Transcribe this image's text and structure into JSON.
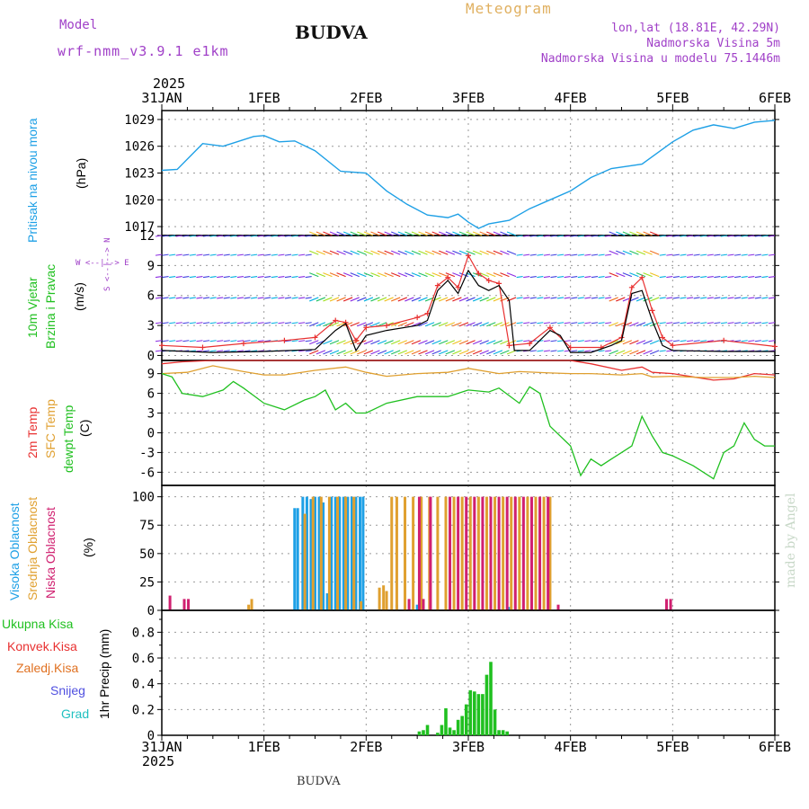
{
  "header": {
    "model_label": "Model",
    "model_name": "wrf-nmm_v3.9.1 e1km",
    "title": "BUDVA",
    "meteogram_label": "Meteogram",
    "lonlat": "lon,lat (18.81E, 42.29N)",
    "elevation": "Nadmorska Visina 5m",
    "model_elevation": "Nadmorska Visina u modelu 75.1446m",
    "footer": "BUDVA",
    "watermark": "made by Angel",
    "year_top": "2025",
    "year_bottom": "2025"
  },
  "time_axis": {
    "labels": [
      "31JAN",
      "1FEB",
      "2FEB",
      "3FEB",
      "4FEB",
      "5FEB",
      "6FEB"
    ],
    "range_days": [
      0,
      6
    ]
  },
  "colors": {
    "pressure": "#1ea0e6",
    "temp2m": "#e83030",
    "sfc": "#e0a030",
    "dew": "#20c020",
    "high_cloud": "#1ea0e6",
    "mid_cloud": "#e0a030",
    "low_cloud": "#d02070",
    "precip": "#20c020",
    "wind_speed": "#000000",
    "gust": "#e83030"
  },
  "panels": {
    "pressure": {
      "label1": "Pritisak na nivou mora",
      "unit": "(hPa)"
    },
    "wind": {
      "label1": "10m Vjetar",
      "label2": "Brzina i Pravac",
      "unit": "(m/s)",
      "compass": "W <--|--> E",
      "compass2": "S <--|--> N"
    },
    "temp": {
      "label1": "2m Temp",
      "label2": "SFC Temp",
      "label3": "dewpt Temp",
      "unit": "(C)"
    },
    "cloud": {
      "label1": "Visoka Oblacnost",
      "label2": "Srednja Oblacnost",
      "label3": "Niska Oblacnost",
      "unit": "(%)"
    },
    "precip": {
      "unit": "1hr Precip (mm)",
      "legend": [
        "Ukupna Kisa",
        "Konvek.Kisa",
        "Zaledj.Kisa",
        "Snijeg",
        "Grad"
      ]
    }
  },
  "chart_data": [
    {
      "type": "line",
      "name": "pressure",
      "ylim": [
        1016,
        1030
      ],
      "yticks": [
        1017,
        1020,
        1023,
        1026,
        1029
      ],
      "x": [
        0,
        0.15,
        0.4,
        0.6,
        0.9,
        1.0,
        1.15,
        1.3,
        1.5,
        1.75,
        2.0,
        2.2,
        2.4,
        2.6,
        2.8,
        2.9,
        3.0,
        3.1,
        3.2,
        3.4,
        3.6,
        3.8,
        4.0,
        4.2,
        4.4,
        4.7,
        5.0,
        5.2,
        5.4,
        5.6,
        5.8,
        6.0
      ],
      "y": [
        1023.3,
        1023.4,
        1026.3,
        1026.0,
        1027.1,
        1027.2,
        1026.5,
        1026.6,
        1025.5,
        1023.2,
        1023.0,
        1021.0,
        1019.5,
        1018.3,
        1018.0,
        1018.4,
        1017.5,
        1016.8,
        1017.3,
        1017.7,
        1019.0,
        1020.0,
        1021.0,
        1022.5,
        1023.5,
        1024.0,
        1026.5,
        1027.8,
        1028.4,
        1028.0,
        1028.7,
        1028.9
      ]
    },
    {
      "type": "line",
      "name": "wind",
      "ylim": [
        -0.5,
        12
      ],
      "yticks": [
        0,
        3,
        6,
        9,
        12
      ],
      "arrow_rows": [
        0.5,
        1.5,
        3.3,
        5.8,
        7.9,
        10.1,
        12
      ],
      "series": [
        {
          "name": "speed",
          "x": [
            0,
            0.5,
            1.0,
            1.5,
            1.7,
            1.8,
            1.9,
            2.0,
            2.2,
            2.5,
            2.6,
            2.7,
            2.8,
            2.9,
            3.0,
            3.1,
            3.2,
            3.3,
            3.4,
            3.45,
            3.6,
            3.8,
            3.9,
            4.0,
            4.2,
            4.4,
            4.5,
            4.6,
            4.7,
            4.8,
            4.9,
            5.0,
            5.5,
            6.0
          ],
          "y": [
            0.5,
            0.3,
            0.4,
            0.6,
            2.5,
            3.2,
            0.5,
            2.0,
            2.5,
            3.0,
            3.5,
            6.5,
            7.5,
            6.2,
            8.5,
            7.0,
            6.5,
            7.0,
            5.5,
            0.5,
            0.5,
            2.5,
            2.0,
            0.3,
            0.3,
            1.0,
            1.5,
            6.2,
            6.5,
            3.5,
            1.0,
            0.5,
            0.4,
            0.4
          ]
        },
        {
          "name": "gust",
          "x": [
            0,
            0.4,
            0.8,
            1.2,
            1.5,
            1.7,
            1.8,
            1.9,
            2.0,
            2.2,
            2.5,
            2.6,
            2.7,
            2.8,
            2.9,
            3.0,
            3.1,
            3.2,
            3.3,
            3.4,
            3.6,
            3.8,
            4.0,
            4.3,
            4.5,
            4.6,
            4.7,
            4.8,
            4.9,
            5.0,
            5.5,
            6.0
          ],
          "y": [
            1.0,
            0.8,
            1.2,
            1.5,
            1.8,
            3.5,
            3.3,
            1.5,
            2.8,
            3.0,
            3.8,
            4.2,
            7.0,
            7.8,
            6.8,
            10.0,
            8.2,
            7.5,
            7.2,
            1.0,
            1.2,
            2.8,
            0.8,
            0.8,
            1.8,
            6.8,
            7.8,
            4.5,
            1.8,
            1.0,
            1.5,
            0.9
          ]
        }
      ]
    },
    {
      "type": "line",
      "name": "temperature",
      "ylim": [
        -8,
        11
      ],
      "yticks": [
        -6,
        -3,
        0,
        3,
        6,
        9
      ],
      "series": [
        {
          "name": "2m",
          "x": [
            0,
            0.2,
            0.5,
            1.0,
            1.5,
            2.0,
            2.5,
            3.0,
            3.5,
            4.0,
            4.2,
            4.5,
            4.7,
            4.8,
            5.0,
            5.2,
            5.4,
            5.6,
            5.8,
            6.0
          ],
          "y": [
            10.5,
            10.8,
            11.0,
            11.0,
            11.0,
            11.0,
            11.0,
            11.0,
            11.0,
            11.0,
            10.5,
            9.5,
            10.0,
            9.2,
            9.0,
            8.5,
            8.0,
            8.2,
            9.0,
            8.8
          ]
        },
        {
          "name": "sfc",
          "x": [
            0,
            0.25,
            0.5,
            0.8,
            1.0,
            1.2,
            1.5,
            1.8,
            2.0,
            2.2,
            2.5,
            2.8,
            3.0,
            3.3,
            3.5,
            3.8,
            4.0,
            4.2,
            4.5,
            4.7,
            4.8,
            5.0,
            5.3,
            5.6,
            5.8,
            6.0
          ],
          "y": [
            9.0,
            9.2,
            10.2,
            9.3,
            8.8,
            8.8,
            9.5,
            10.0,
            9.2,
            8.6,
            9.0,
            9.2,
            9.8,
            9.0,
            9.3,
            9.1,
            9.0,
            9.0,
            8.8,
            9.0,
            8.5,
            8.6,
            8.4,
            8.4,
            8.6,
            8.4
          ]
        },
        {
          "name": "dew",
          "x": [
            0,
            0.1,
            0.2,
            0.4,
            0.6,
            0.7,
            0.8,
            1.0,
            1.2,
            1.4,
            1.5,
            1.6,
            1.7,
            1.8,
            1.9,
            2.0,
            2.2,
            2.5,
            2.8,
            3.0,
            3.2,
            3.3,
            3.5,
            3.6,
            3.7,
            3.8,
            4.0,
            4.1,
            4.2,
            4.3,
            4.4,
            4.5,
            4.6,
            4.7,
            4.8,
            4.9,
            5.0,
            5.2,
            5.4,
            5.5,
            5.6,
            5.7,
            5.8,
            5.9,
            6.0
          ],
          "y": [
            9.0,
            8.5,
            6.0,
            5.5,
            6.5,
            7.8,
            6.8,
            4.5,
            3.5,
            5.0,
            5.5,
            6.5,
            3.5,
            4.5,
            3.0,
            3.0,
            4.5,
            5.5,
            5.5,
            6.5,
            6.2,
            6.8,
            4.5,
            7.0,
            6.0,
            1.0,
            -2.0,
            -6.5,
            -4.0,
            -5.0,
            -4.0,
            -3.0,
            -2.0,
            2.5,
            -0.5,
            -3.0,
            -3.5,
            -5.0,
            -7.0,
            -3.0,
            -2.0,
            1.5,
            -1.0,
            -2.0,
            -2.0
          ]
        }
      ]
    },
    {
      "type": "bar",
      "name": "cloud",
      "ylim": [
        0,
        110
      ],
      "yticks": [
        0,
        25,
        50,
        75,
        100
      ],
      "series": [
        {
          "name": "high",
          "x": [
            1.3,
            1.33,
            1.38,
            1.42,
            1.46,
            1.5,
            1.54,
            1.58,
            1.62,
            1.66,
            1.7,
            1.74,
            1.78,
            1.82,
            1.86,
            1.9,
            1.94,
            1.97,
            2.3,
            2.5,
            3.4
          ],
          "y": [
            90,
            90,
            100,
            100,
            98,
            100,
            100,
            95,
            15,
            100,
            100,
            100,
            100,
            100,
            100,
            100,
            100,
            100,
            5,
            5,
            3
          ]
        },
        {
          "name": "mid",
          "x": [
            0.85,
            0.88,
            1.4,
            1.48,
            1.56,
            1.64,
            1.72,
            1.8,
            1.88,
            1.95,
            2.13,
            2.17,
            2.2,
            2.25,
            2.3,
            2.38,
            2.46,
            2.54,
            2.62,
            2.7,
            2.78,
            2.86,
            2.94,
            3.02,
            3.1,
            3.18,
            3.26,
            3.34,
            3.42,
            3.5,
            3.58,
            3.66,
            3.74,
            3.8
          ],
          "y": [
            5,
            10,
            85,
            100,
            100,
            100,
            100,
            100,
            100,
            8,
            20,
            22,
            17,
            100,
            100,
            100,
            100,
            100,
            100,
            100,
            100,
            100,
            100,
            100,
            100,
            100,
            100,
            100,
            100,
            100,
            100,
            100,
            100,
            100
          ]
        },
        {
          "name": "low",
          "x": [
            0.08,
            0.22,
            0.26,
            2.42,
            2.52,
            2.56,
            2.63,
            2.82,
            2.9,
            2.98,
            3.06,
            3.14,
            3.22,
            3.3,
            3.38,
            3.46,
            3.54,
            3.62,
            3.7,
            3.78,
            3.88,
            4.94,
            4.98
          ],
          "y": [
            13,
            10,
            10,
            10,
            100,
            10,
            100,
            100,
            100,
            100,
            100,
            100,
            100,
            100,
            100,
            100,
            100,
            100,
            100,
            100,
            5,
            10,
            10
          ]
        }
      ]
    },
    {
      "type": "bar",
      "name": "precip",
      "ylim": [
        0,
        0.97
      ],
      "yticks": [
        0,
        0.2,
        0.4,
        0.6,
        0.8
      ],
      "x": [
        2.52,
        2.56,
        2.6,
        2.7,
        2.74,
        2.78,
        2.82,
        2.86,
        2.9,
        2.94,
        2.98,
        3.02,
        3.06,
        3.1,
        3.14,
        3.18,
        3.22,
        3.26,
        3.3,
        3.34,
        3.38
      ],
      "y": [
        0.03,
        0.04,
        0.08,
        0.02,
        0.08,
        0.21,
        0.06,
        0.04,
        0.12,
        0.15,
        0.24,
        0.35,
        0.34,
        0.32,
        0.32,
        0.47,
        0.57,
        0.2,
        0.04,
        0.04,
        0.03
      ]
    }
  ]
}
